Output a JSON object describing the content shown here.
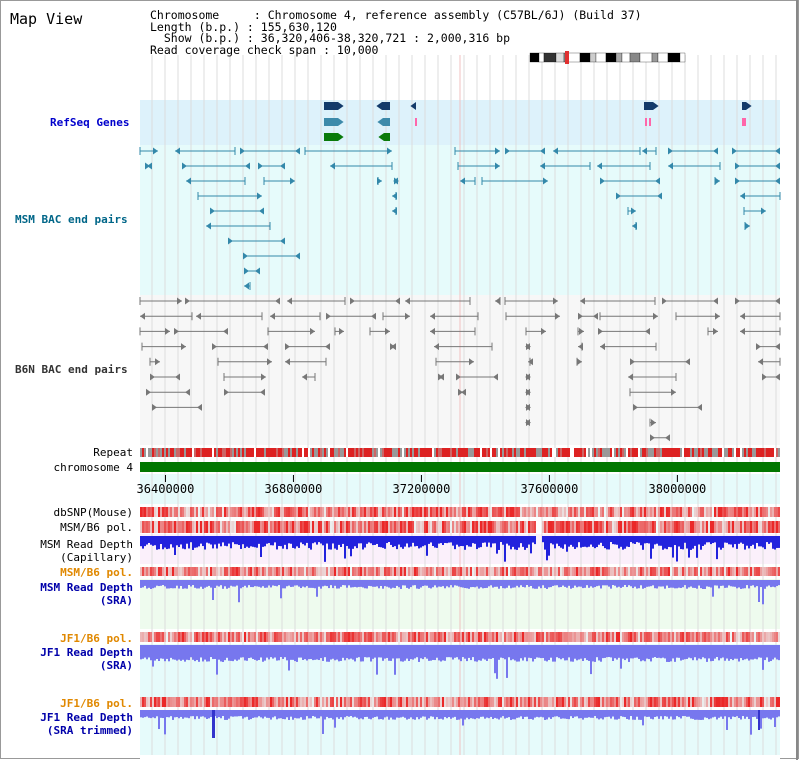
{
  "view_title": "Map View",
  "info": {
    "chromosome_line": "Chromosome     : Chromosome 4, reference assembly (C57BL/6J) (Build 37)",
    "length_line": "Length (b.p.) : 155,630,120",
    "show_line": "  Show (b.p.) : 36,320,406-38,320,721 : 2,000,316 bp",
    "coverage_line": "Read coverage check span : 10,000"
  },
  "tracks": [
    {
      "key": "refseq",
      "label": "RefSeq Genes",
      "color": "#0000cc"
    },
    {
      "key": "msm_bac",
      "label": "MSM BAC end pairs",
      "color": "#006688"
    },
    {
      "key": "b6n_bac",
      "label": "B6N BAC end pairs",
      "color": "#333333"
    },
    {
      "key": "repeat",
      "label": "Repeat",
      "color": "#000000"
    },
    {
      "key": "chrom",
      "label": "chromosome 4",
      "color": "#000000"
    },
    {
      "key": "dbsnp",
      "label": "dbSNP(Mouse)",
      "color": "#000000"
    },
    {
      "key": "msm_pol",
      "label": "MSM/B6 pol.",
      "color": "#000000"
    },
    {
      "key": "msm_depth_cap1",
      "label": "MSM Read Depth",
      "color": "#000000"
    },
    {
      "key": "msm_depth_cap2",
      "label": "(Capillary)",
      "color": "#000000"
    },
    {
      "key": "msm_pol_sra",
      "label": "MSM/B6 pol.",
      "color": "#e08800"
    },
    {
      "key": "msm_depth_sra1",
      "label": "MSM Read Depth",
      "color": "#0000aa"
    },
    {
      "key": "msm_depth_sra2",
      "label": "(SRA)",
      "color": "#0000aa"
    },
    {
      "key": "jf1_pol",
      "label": "JF1/B6 pol.",
      "color": "#e08800"
    },
    {
      "key": "jf1_depth1",
      "label": "JF1 Read Depth",
      "color": "#0000aa"
    },
    {
      "key": "jf1_depth2",
      "label": "(SRA)",
      "color": "#0000aa"
    },
    {
      "key": "jf1_pol_trim",
      "label": "JF1/B6 pol.",
      "color": "#e08800"
    },
    {
      "key": "jf1_trim1",
      "label": "JF1 Read Depth",
      "color": "#0000aa"
    },
    {
      "key": "jf1_trim2",
      "label": "(SRA trimmed)",
      "color": "#0000aa"
    }
  ],
  "axis": {
    "start_bp": 36320406,
    "end_bp": 38320721,
    "ticks": [
      {
        "value": 36400000,
        "label": "36400000"
      },
      {
        "value": 36800000,
        "label": "36800000"
      },
      {
        "value": 37200000,
        "label": "37200000"
      },
      {
        "value": 37600000,
        "label": "37600000"
      },
      {
        "value": 38000000,
        "label": "38000000"
      }
    ]
  },
  "colors": {
    "refseq_bg": "#ddf2fb",
    "msm_bg": "#e6fbfb",
    "b6n_bg": "#f7f7f7",
    "axis_bg": "#e6fbfb",
    "msm_gene": "#3388aa",
    "b6n_gene": "#777777",
    "repeat_red": "#dd2222",
    "chrom_green": "#007700",
    "depth_blue": "#2222dd",
    "depth_light": "#7777ee"
  }
}
